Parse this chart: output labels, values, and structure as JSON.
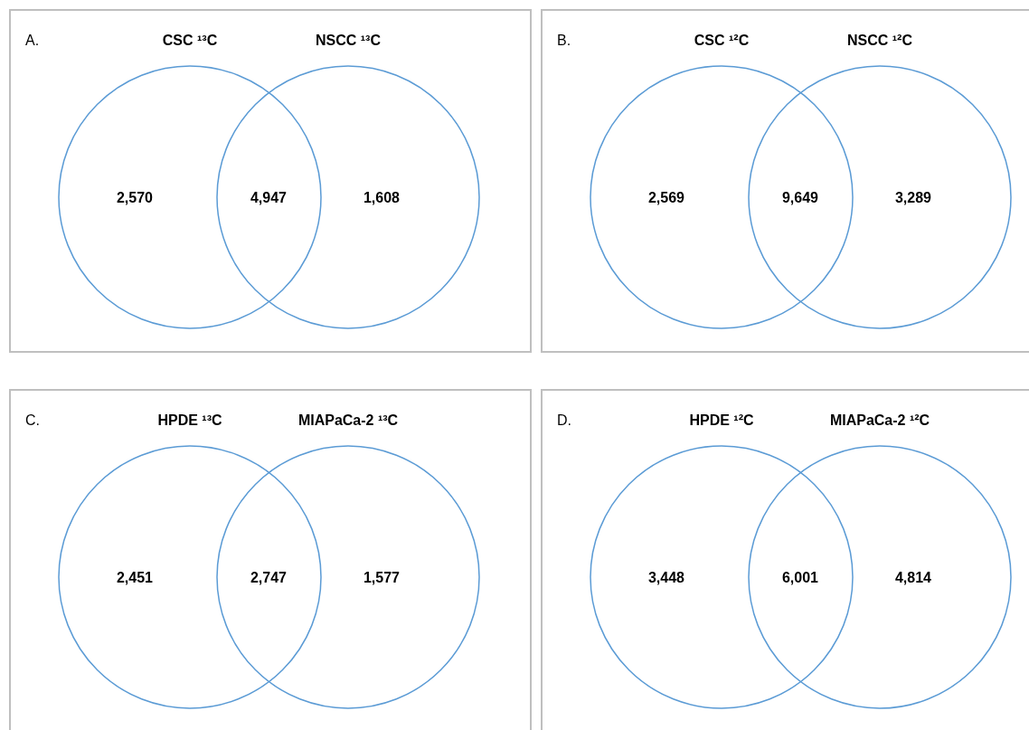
{
  "chart_data": [
    {
      "type": "other",
      "title": "A.",
      "annotations": [
        "CSC ¹³C",
        "NSCC ¹³C"
      ],
      "categories": [
        null,
        null,
        null
      ],
      "values": [
        2570,
        4947,
        1608
      ],
      "value_labels": [
        "2,570",
        "4,947",
        "1,608"
      ],
      "color": "#5b9bd5"
    },
    {
      "type": "other",
      "title": "B.",
      "annotations": [
        "CSC ¹²C",
        "NSCC ¹²C"
      ],
      "categories": [
        null,
        null,
        null
      ],
      "values": [
        2569,
        9649,
        3289
      ],
      "value_labels": [
        "2,569",
        "9,649",
        "3,289"
      ],
      "color": "#5b9bd5"
    },
    {
      "type": "other",
      "title": "C.",
      "annotations": [
        "HPDE ¹³C",
        "MIAPaCa-2 ¹³C"
      ],
      "categories": [
        null,
        null,
        null
      ],
      "values": [
        2451,
        2747,
        1577
      ],
      "value_labels": [
        "2,451",
        "2,747",
        "1,577"
      ],
      "color": "#5b9bd5"
    },
    {
      "type": "other",
      "title": "D.",
      "annotations": [
        "HPDE ¹²C",
        "MIAPaCa-2 ¹²C"
      ],
      "categories": [
        null,
        null,
        null
      ],
      "values": [
        3448,
        6001,
        4814
      ],
      "value_labels": [
        "3,448",
        "6,001",
        "4,814"
      ],
      "color": "#5b9bd5"
    }
  ]
}
